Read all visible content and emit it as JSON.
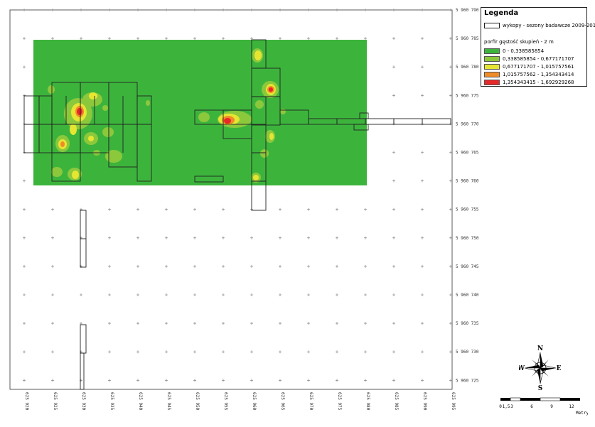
{
  "map": {
    "x_ticks": [
      "625 920",
      "625 925",
      "625 930",
      "625 935",
      "625 940",
      "625 945",
      "625 950",
      "625 955",
      "625 960",
      "625 965",
      "625 970",
      "625 975",
      "625 980",
      "625 985",
      "625 990",
      "625 995"
    ],
    "y_ticks": [
      "5 960 790",
      "5 960 785",
      "5 960 780",
      "5 960 775",
      "5 960 770",
      "5 960 765",
      "5 960 760",
      "5 960 755",
      "5 960 750",
      "5 960 745",
      "5 960 740",
      "5 960 735",
      "5 960 730",
      "5 960 725"
    ],
    "colors": {
      "c1": "#3cb43c",
      "c2": "#8cc83c",
      "c3": "#e6e632",
      "c4": "#f08c28",
      "c5": "#e62828",
      "trench_outline": "#222222"
    }
  },
  "legend": {
    "title": "Legenda",
    "trench_label": "wykopy - sezony badawcze 2009-2012",
    "subtitle": "porfir gęstość skupień - 2 m",
    "classes": [
      {
        "label": "0 - 0,338585854",
        "color": "#3cb43c"
      },
      {
        "label": "0,338585854 - 0,677171707",
        "color": "#8cc83c"
      },
      {
        "label": "0,677171707 - 1,015757561",
        "color": "#e6e632"
      },
      {
        "label": "1,015757562 - 1,354343414",
        "color": "#f08c28"
      },
      {
        "label": "1,354343415 - 1,692929268",
        "color": "#e62828"
      }
    ]
  },
  "compass": {
    "n": "N",
    "s": "S",
    "e": "E",
    "w": "W"
  },
  "scale": {
    "ticks": [
      "0",
      "1,5",
      "3",
      "6",
      "9",
      "12"
    ],
    "unit": "Metry"
  }
}
